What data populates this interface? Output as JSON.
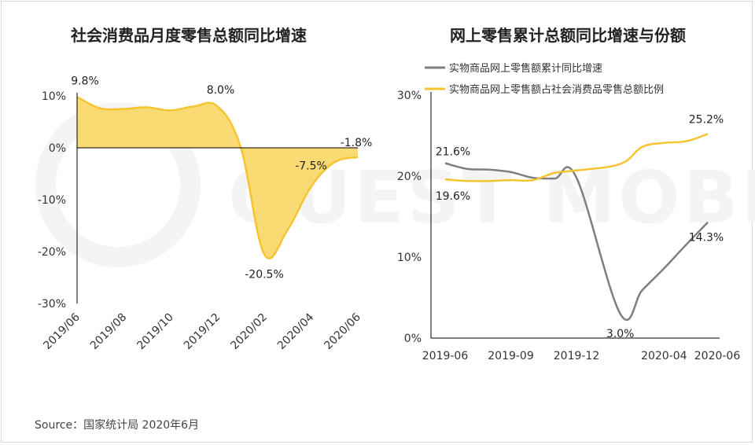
{
  "watermark": "QUEST MOBILE",
  "source": "Source：国家统计局 2020年6月",
  "colors": {
    "yellow": "#F5C430",
    "yellow_fill": "#F9D35A",
    "gray": "#7F7F7F",
    "axis": "#000000"
  },
  "chart_data": [
    {
      "type": "area",
      "title": "社会消费品月度零售总额同比增速",
      "xlabel": "",
      "ylabel": "",
      "ylim": [
        -30,
        10
      ],
      "yticks": [
        10,
        0,
        -10,
        -20,
        -30
      ],
      "yticklabels": [
        "10%",
        "0%",
        "-10%",
        "-20%",
        "-30%"
      ],
      "xticks": [
        "2019/06",
        "2019/08",
        "2019/10",
        "2019/12",
        "2020/02",
        "2020/04",
        "2020/06"
      ],
      "x": [
        "2019/06",
        "2019/07",
        "2019/08",
        "2019/09",
        "2019/10",
        "2019/11",
        "2019/12",
        "2020/01",
        "2020/02",
        "2020/03",
        "2020/04",
        "2020/05",
        "2020/06"
      ],
      "values": [
        9.8,
        7.6,
        7.5,
        7.8,
        7.2,
        8.0,
        8.0,
        0,
        -20.5,
        -15.8,
        -7.5,
        -2.8,
        -1.8
      ],
      "data_labels": [
        {
          "x": "2019/06",
          "text": "9.8%"
        },
        {
          "x": "2019/12",
          "text": "8.0%"
        },
        {
          "x": "2020/02",
          "text": "-20.5%"
        },
        {
          "x": "2020/04",
          "text": "-7.5%"
        },
        {
          "x": "2020/06",
          "text": "-1.8%"
        }
      ],
      "grid": false
    },
    {
      "type": "line",
      "title": "网上零售累计总额同比增速与份额",
      "xlabel": "",
      "ylabel": "",
      "ylim": [
        0,
        30
      ],
      "yticks": [
        30,
        20,
        10,
        0
      ],
      "yticklabels": [
        "30%",
        "20%",
        "10%",
        "0%"
      ],
      "xticks": [
        "2019-06",
        "2019-09",
        "2019-12",
        "2020-04",
        "2020-06"
      ],
      "x": [
        "2019-06",
        "2019-07",
        "2019-08",
        "2019-09",
        "2019-10",
        "2019-11",
        "2019-12",
        "2020-02",
        "2020-03",
        "2020-04",
        "2020-05",
        "2020-06"
      ],
      "legend_position": "top",
      "series": [
        {
          "name": "实物商品网上零售额累计同比增速",
          "color": "#7F7F7F",
          "values": [
            21.6,
            20.9,
            20.8,
            20.5,
            19.8,
            19.7,
            19.8,
            3.0,
            5.9,
            8.6,
            11.5,
            14.3
          ],
          "data_labels": [
            {
              "x": "2019-06",
              "text": "21.6%"
            },
            {
              "x": "2020-02",
              "text": "3.0%"
            },
            {
              "x": "2020-06",
              "text": "14.3%"
            }
          ]
        },
        {
          "name": "实物商品网上零售额占社会消费品零售总额比例",
          "color": "#F5C430",
          "values": [
            19.6,
            19.4,
            19.4,
            19.5,
            19.5,
            20.4,
            20.7,
            21.5,
            23.6,
            24.1,
            24.3,
            25.2
          ],
          "data_labels": [
            {
              "x": "2019-06",
              "text": "19.6%"
            },
            {
              "x": "2020-06",
              "text": "25.2%"
            }
          ]
        }
      ],
      "grid": false
    }
  ]
}
